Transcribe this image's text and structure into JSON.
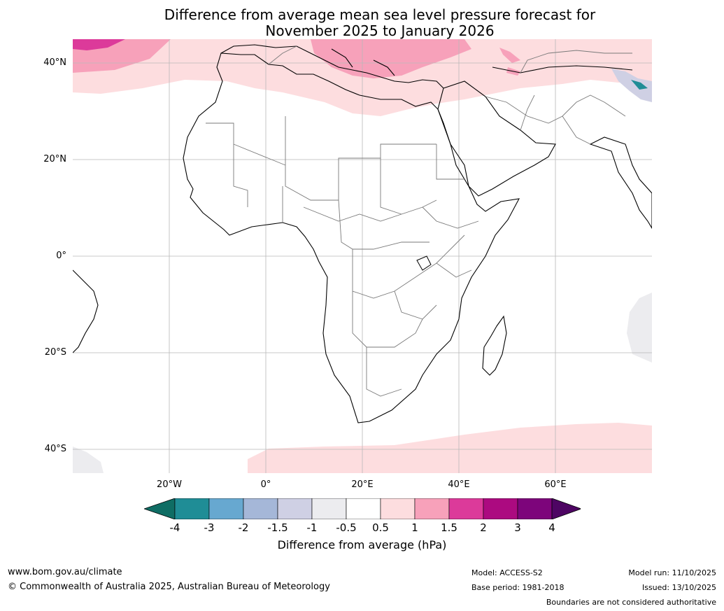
{
  "title": {
    "line1": "Difference from average mean sea level pressure forecast for",
    "line2": "November 2025 to January 2026"
  },
  "map": {
    "lat_labels": [
      "40°N",
      "20°N",
      "0°",
      "20°S",
      "40°S"
    ],
    "lon_labels": [
      "20°W",
      "0°",
      "20°E",
      "40°E",
      "60°E"
    ]
  },
  "legend": {
    "ticks": [
      "-4",
      "-3",
      "-2",
      "-1.5",
      "-1",
      "-0.5",
      "0.5",
      "1",
      "1.5",
      "2",
      "3",
      "4"
    ],
    "label": "Difference from average (hPa)",
    "colors": [
      "#0f6d64",
      "#1f8d96",
      "#67a8d0",
      "#a5b7d8",
      "#cfd0e4",
      "#ececef",
      "#ffffff",
      "#fddddf",
      "#f7a1ba",
      "#dc3a9a",
      "#ac0a80",
      "#7d057b",
      "#4e0563"
    ]
  },
  "footer": {
    "url": "www.bom.gov.au/climate",
    "copyright": "© Commonwealth of Australia 2025, Australian Bureau of Meteorology",
    "model": "Model: ACCESS-S2",
    "base_period": "Base period: 1981-2018",
    "model_run": "Model run: 11/10/2025",
    "issued": "Issued: 13/10/2025",
    "disclaimer": "Boundaries are not considered authoritative"
  }
}
